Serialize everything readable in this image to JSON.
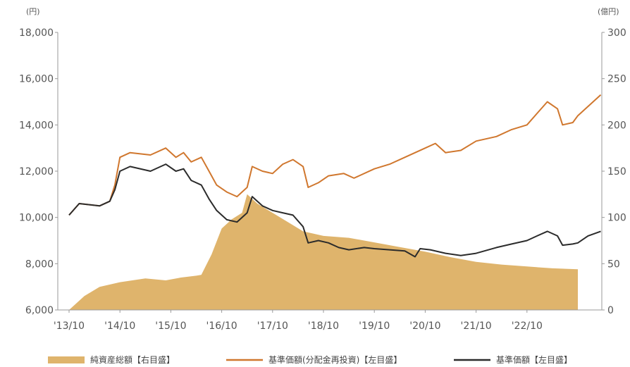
{
  "chart_data": {
    "type": "line",
    "x_categories": [
      "'13/10",
      "'14/10",
      "'15/10",
      "'16/10",
      "'17/10",
      "'18/10",
      "'19/10",
      "'20/10",
      "'21/10",
      "'22/10"
    ],
    "left_axis": {
      "unit": "(円)",
      "ylim": [
        6000,
        18000
      ],
      "ticks": [
        "6,000",
        "8,000",
        "10,000",
        "12,000",
        "14,000",
        "16,000",
        "18,000"
      ]
    },
    "right_axis": {
      "unit": "(億円)",
      "ylim": [
        0,
        300
      ],
      "ticks": [
        "0",
        "50",
        "100",
        "150",
        "200",
        "250",
        "300"
      ]
    },
    "grid": false,
    "legend_position": "bottom",
    "series": [
      {
        "name": "純資産総額【右目盛】",
        "kind": "area",
        "axis": "right",
        "color": "#dfb46c",
        "points": [
          [
            0,
            0
          ],
          [
            0.3,
            15
          ],
          [
            0.6,
            25
          ],
          [
            1.0,
            30
          ],
          [
            1.5,
            34
          ],
          [
            1.9,
            32
          ],
          [
            2.2,
            35
          ],
          [
            2.5,
            37
          ],
          [
            2.6,
            38
          ],
          [
            2.8,
            60
          ],
          [
            3.0,
            88
          ],
          [
            3.2,
            98
          ],
          [
            3.4,
            105
          ],
          [
            3.5,
            125
          ],
          [
            3.7,
            115
          ],
          [
            4.0,
            105
          ],
          [
            4.3,
            95
          ],
          [
            4.6,
            85
          ],
          [
            5.0,
            80
          ],
          [
            5.5,
            78
          ],
          [
            6.0,
            73
          ],
          [
            6.5,
            68
          ],
          [
            7.0,
            63
          ],
          [
            7.5,
            57
          ],
          [
            8.0,
            52
          ],
          [
            8.5,
            49
          ],
          [
            9.0,
            47
          ],
          [
            9.5,
            45
          ],
          [
            10.0,
            44
          ]
        ]
      },
      {
        "name": "基準価額(分配金再投資)【左目盛】",
        "kind": "line",
        "axis": "left",
        "color": "#d0772e",
        "points": [
          [
            0,
            10100
          ],
          [
            0.2,
            10600
          ],
          [
            0.6,
            10500
          ],
          [
            0.8,
            10700
          ],
          [
            0.9,
            11400
          ],
          [
            1.0,
            12600
          ],
          [
            1.2,
            12800
          ],
          [
            1.6,
            12700
          ],
          [
            1.9,
            13000
          ],
          [
            2.1,
            12600
          ],
          [
            2.25,
            12800
          ],
          [
            2.4,
            12400
          ],
          [
            2.6,
            12600
          ],
          [
            2.75,
            12000
          ],
          [
            2.9,
            11400
          ],
          [
            3.1,
            11100
          ],
          [
            3.3,
            10900
          ],
          [
            3.5,
            11300
          ],
          [
            3.6,
            12200
          ],
          [
            3.8,
            12000
          ],
          [
            4.0,
            11900
          ],
          [
            4.2,
            12300
          ],
          [
            4.4,
            12500
          ],
          [
            4.6,
            12200
          ],
          [
            4.7,
            11300
          ],
          [
            4.9,
            11500
          ],
          [
            5.1,
            11800
          ],
          [
            5.4,
            11900
          ],
          [
            5.6,
            11700
          ],
          [
            6.0,
            12100
          ],
          [
            6.3,
            12300
          ],
          [
            6.6,
            12600
          ],
          [
            7.0,
            13000
          ],
          [
            7.2,
            13200
          ],
          [
            7.4,
            12800
          ],
          [
            7.7,
            12900
          ],
          [
            8.0,
            13300
          ],
          [
            8.4,
            13500
          ],
          [
            8.7,
            13800
          ],
          [
            9.0,
            14000
          ],
          [
            9.2,
            14500
          ],
          [
            9.4,
            15000
          ],
          [
            9.6,
            14700
          ],
          [
            9.7,
            14000
          ],
          [
            9.9,
            14100
          ],
          [
            10.0,
            14400
          ],
          [
            10.2,
            14800
          ],
          [
            10.45,
            15300
          ]
        ]
      },
      {
        "name": "基準価額【左目盛】",
        "kind": "line",
        "axis": "left",
        "color": "#2b2b2b",
        "points": [
          [
            0,
            10100
          ],
          [
            0.2,
            10600
          ],
          [
            0.6,
            10500
          ],
          [
            0.8,
            10700
          ],
          [
            0.9,
            11200
          ],
          [
            1.0,
            12000
          ],
          [
            1.2,
            12200
          ],
          [
            1.6,
            12000
          ],
          [
            1.9,
            12300
          ],
          [
            2.1,
            12000
          ],
          [
            2.25,
            12100
          ],
          [
            2.4,
            11600
          ],
          [
            2.6,
            11400
          ],
          [
            2.75,
            10800
          ],
          [
            2.9,
            10300
          ],
          [
            3.1,
            9900
          ],
          [
            3.3,
            9800
          ],
          [
            3.5,
            10200
          ],
          [
            3.6,
            10900
          ],
          [
            3.8,
            10500
          ],
          [
            4.0,
            10300
          ],
          [
            4.2,
            10200
          ],
          [
            4.4,
            10100
          ],
          [
            4.6,
            9600
          ],
          [
            4.7,
            8900
          ],
          [
            4.9,
            9000
          ],
          [
            5.1,
            8900
          ],
          [
            5.3,
            8700
          ],
          [
            5.5,
            8600
          ],
          [
            5.8,
            8700
          ],
          [
            6.0,
            8650
          ],
          [
            6.3,
            8600
          ],
          [
            6.6,
            8550
          ],
          [
            6.8,
            8300
          ],
          [
            6.9,
            8650
          ],
          [
            7.1,
            8600
          ],
          [
            7.4,
            8450
          ],
          [
            7.7,
            8350
          ],
          [
            8.0,
            8450
          ],
          [
            8.4,
            8700
          ],
          [
            8.7,
            8850
          ],
          [
            9.0,
            9000
          ],
          [
            9.2,
            9200
          ],
          [
            9.4,
            9400
          ],
          [
            9.6,
            9200
          ],
          [
            9.7,
            8800
          ],
          [
            9.9,
            8850
          ],
          [
            10.0,
            8900
          ],
          [
            10.2,
            9200
          ],
          [
            10.45,
            9400
          ]
        ]
      }
    ]
  }
}
